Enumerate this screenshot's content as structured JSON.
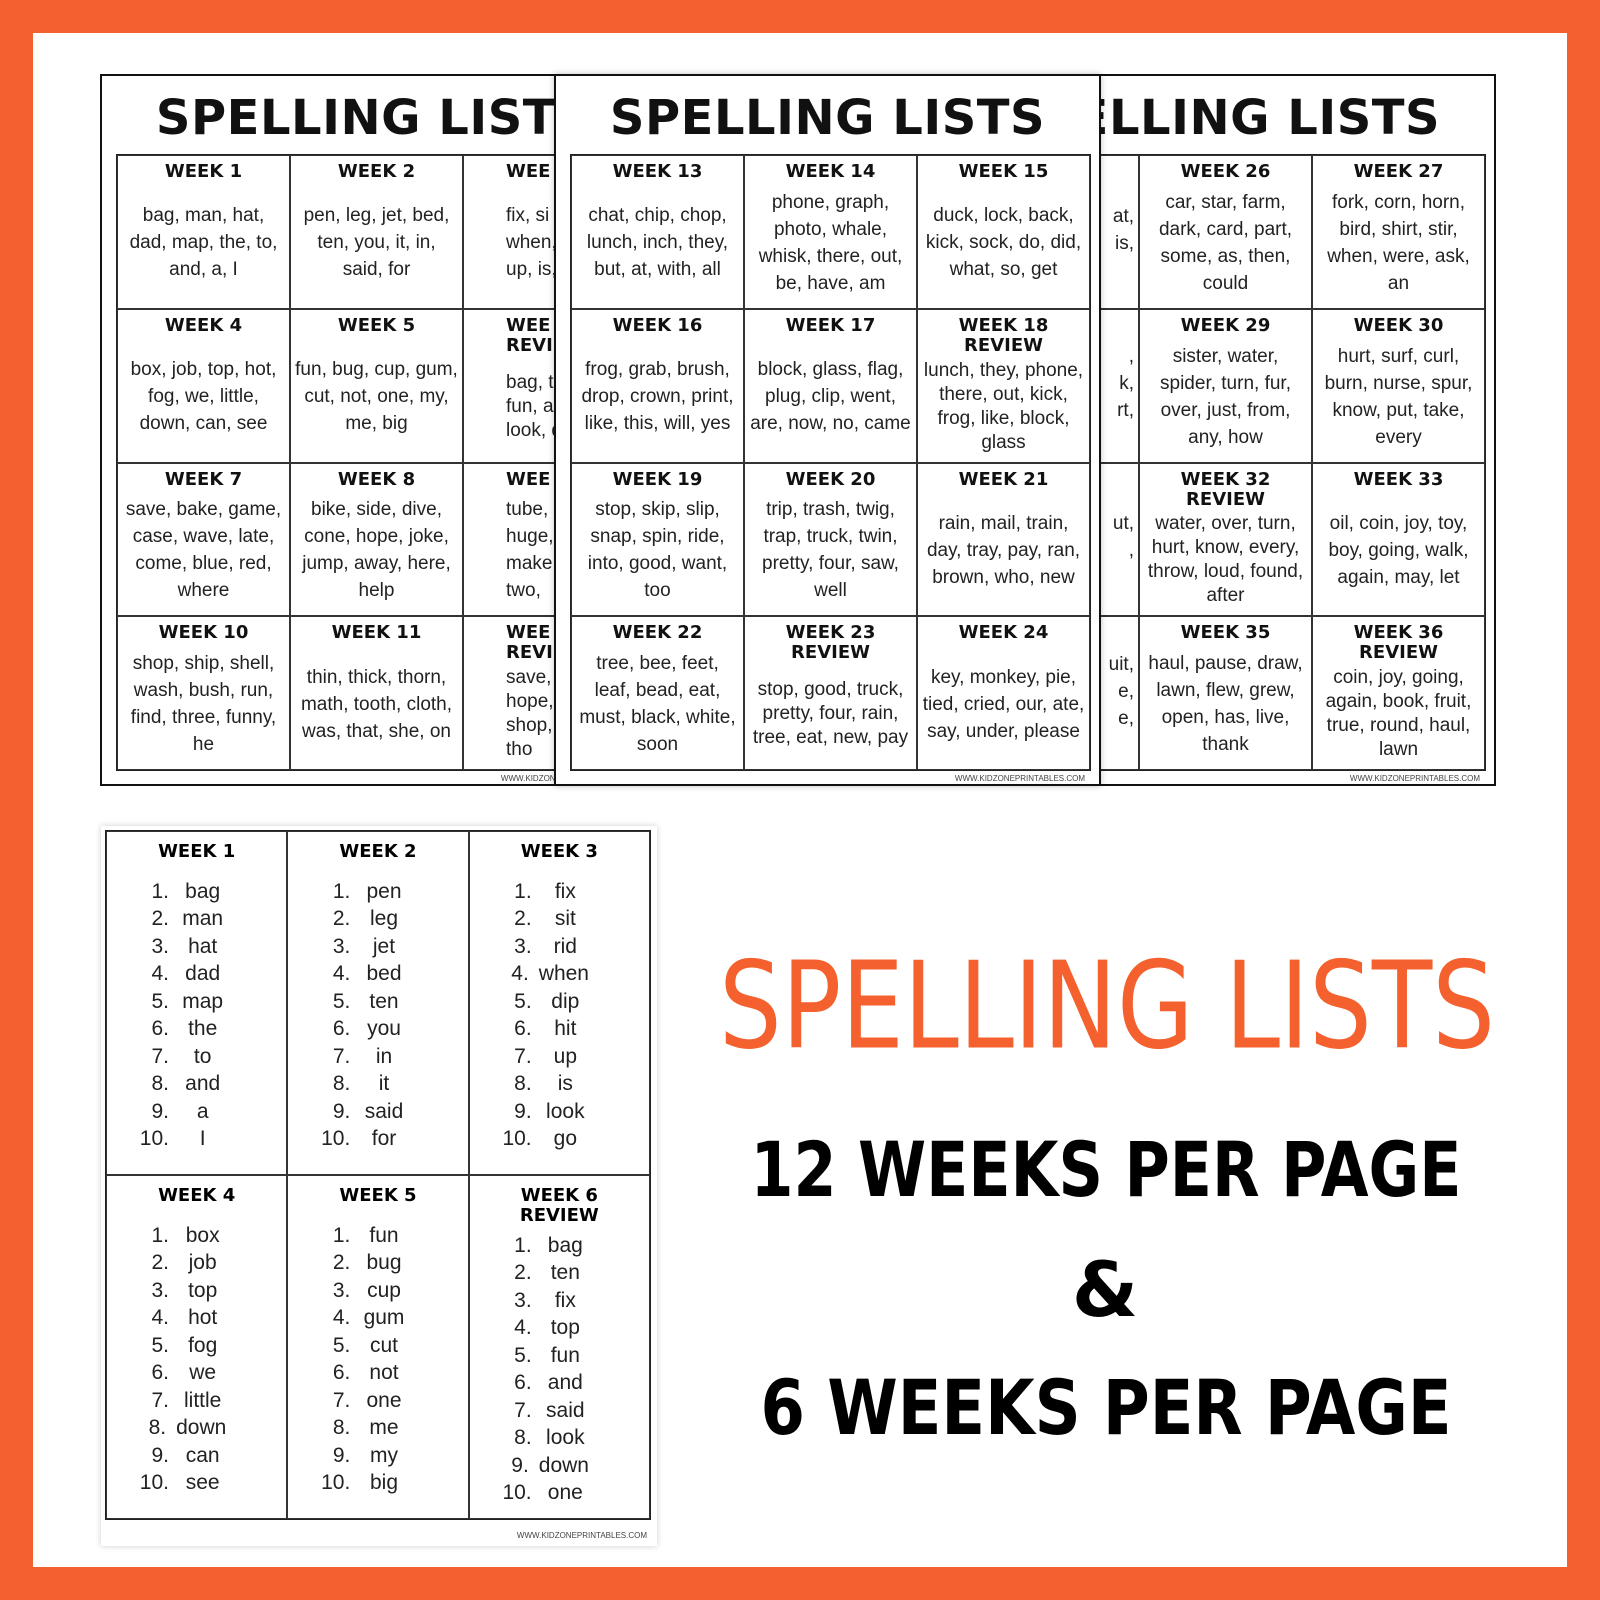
{
  "pages": [
    {
      "title": "SPELLING LISTS",
      "url": "WWW.KIDZONEPRINTABLES.COM",
      "weeks": [
        {
          "title": "WEEK 1",
          "words": "bag, man, hat, dad, map, the, to, and, a, I"
        },
        {
          "title": "WEEK 2",
          "words": "pen, leg, jet, bed, ten, you, it, in, said, for"
        },
        {
          "title": "WEE",
          "lines": [
            "fix, si",
            "when, d",
            "up, is, lo"
          ]
        },
        {
          "title": "WEEK 4",
          "words": "box, job, top, hot, fog, we, little, down, can, see"
        },
        {
          "title": "WEEK 5",
          "words": "fun, bug, cup, gum, cut, not, one, my, me, big"
        },
        {
          "title": "WEE",
          "label": "REVI",
          "lines": [
            "bag, ten,",
            "fun, and",
            "look, dov"
          ]
        },
        {
          "title": "WEEK 7",
          "words": "save, bake, game, case, wave, late, come, blue, red, where"
        },
        {
          "title": "WEEK 8",
          "words": "bike, side, dive, cone, hope, joke, jump, away, here, help"
        },
        {
          "title": "WEE",
          "lines": [
            "tube, mu",
            "huge, tu",
            "make, y",
            "two,"
          ]
        },
        {
          "title": "WEEK 10",
          "words": "shop, ship, shell, wash, bush, run, find, three, funny, he"
        },
        {
          "title": "WEEK 11",
          "words": "thin, thick, thorn, math, tooth, cloth, was, that, she, on"
        },
        {
          "title": "WEE",
          "label": "REVI",
          "lines": [
            "save, whe",
            "hope, cub",
            "shop, funn",
            "tho"
          ]
        }
      ]
    },
    {
      "title": "SPELLING LISTS",
      "url": "WWW.KIDZONEPRINTABLES.COM",
      "weeks": [
        {
          "title": "WEEK 13",
          "words": "chat, chip, chop, lunch, inch, they, but, at, with, all"
        },
        {
          "title": "WEEK 14",
          "words": "phone, graph, photo, whale, whisk, there, out, be, have, am"
        },
        {
          "title": "WEEK 15",
          "words": "duck, lock, back, kick, sock, do, did, what, so, get"
        },
        {
          "title": "WEEK 16",
          "words": "frog, grab, brush, drop, crown, print, like, this, will, yes"
        },
        {
          "title": "WEEK 17",
          "words": "block, glass, flag, plug, clip, went, are, now, no, came"
        },
        {
          "title": "WEEK 18",
          "label": "REVIEW",
          "words": "lunch, they, phone, there, out, kick, frog, like, block, glass"
        },
        {
          "title": "WEEK 19",
          "words": "stop, skip, slip, snap, spin, ride, into, good, want, too"
        },
        {
          "title": "WEEK 20",
          "words": "trip, trash, twig, trap, truck, twin, pretty, four, saw, well"
        },
        {
          "title": "WEEK 21",
          "words": "rain, mail, train, day, tray, pay, ran, brown, who, new"
        },
        {
          "title": "WEEK 22",
          "words": "tree, bee, feet, leaf, bead, eat, must, black, white, soon"
        },
        {
          "title": "WEEK 23",
          "label": "REVIEW",
          "words": "stop, good, truck, pretty, four, rain, tree, eat, new, pay"
        },
        {
          "title": "WEEK 24",
          "words": "key, monkey, pie, tied, cried, our, ate, say, under, please"
        }
      ]
    },
    {
      "title": "SPELLING LISTS",
      "url": "WWW.KIDZONEPRINTABLES.COM",
      "weeks": [
        {
          "lines": [
            "at,",
            "is,"
          ]
        },
        {
          "title": "WEEK 26",
          "words": "car, star, farm, dark, card, part, some, as, then, could"
        },
        {
          "title": "WEEK 27",
          "words": "fork, corn, horn, bird, shirt, stir, when, were, ask, an"
        },
        {
          "lines": [
            ",",
            "k,",
            "rt,"
          ]
        },
        {
          "title": "WEEK 29",
          "words": "sister, water, spider, turn, fur, over, just, from, any, how"
        },
        {
          "title": "WEEK 30",
          "words": "hurt, surf, curl, burn, nurse, spur, know, put, take, every"
        },
        {
          "lines": [
            "ut,",
            ","
          ]
        },
        {
          "title": "WEEK 32",
          "label": "REVIEW",
          "words": "water, over, turn, hurt, know, every, throw, loud, found, after"
        },
        {
          "title": "WEEK 33",
          "words": "oil, coin, joy, toy, boy, going, walk, again, may, let"
        },
        {
          "lines": [
            "uit,",
            "e,",
            "e,"
          ]
        },
        {
          "title": "WEEK 35",
          "words": "haul, pause, draw, lawn, flew, grew, open, has, live, thank"
        },
        {
          "title": "WEEK 36",
          "label": "REVIEW",
          "words": "coin, joy, going, again, book, fruit, true, round, haul, lawn"
        }
      ]
    }
  ],
  "six_week_page": {
    "url": "WWW.KIDZONEPRINTABLES.COM",
    "numbers": [
      "1.",
      "2.",
      "3.",
      "4.",
      "5.",
      "6.",
      "7.",
      "8.",
      "9.",
      "10."
    ],
    "weeks": [
      {
        "title": "WEEK 1",
        "words": [
          "bag",
          "man",
          "hat",
          "dad",
          "map",
          "the",
          "to",
          "and",
          "a",
          "I"
        ]
      },
      {
        "title": "WEEK 2",
        "words": [
          "pen",
          "leg",
          "jet",
          "bed",
          "ten",
          "you",
          "in",
          "it",
          "said",
          "for"
        ]
      },
      {
        "title": "WEEK 3",
        "words": [
          "fix",
          "sit",
          "rid",
          "when",
          "dip",
          "hit",
          "up",
          "is",
          "look",
          "go"
        ]
      },
      {
        "title": "WEEK 4",
        "words": [
          "box",
          "job",
          "top",
          "hot",
          "fog",
          "we",
          "little",
          "down",
          "can",
          "see"
        ]
      },
      {
        "title": "WEEK 5",
        "words": [
          "fun",
          "bug",
          "cup",
          "gum",
          "cut",
          "not",
          "one",
          "me",
          "my",
          "big"
        ]
      },
      {
        "title": "WEEK 6",
        "label": "REVIEW",
        "words": [
          "bag",
          "ten",
          "fix",
          "top",
          "fun",
          "and",
          "said",
          "look",
          "down",
          "one"
        ]
      }
    ]
  },
  "headline": {
    "title": "SPELLING LISTS",
    "line1": "12 WEEKS PER PAGE",
    "amp": "&",
    "line2": "6 WEEKS PER PAGE"
  }
}
